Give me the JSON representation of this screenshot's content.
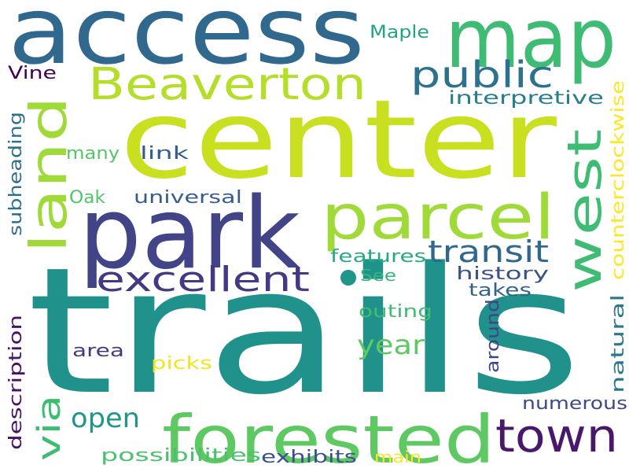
{
  "cloud": {
    "words": [
      {
        "text": "trails",
        "color": "#21918c"
      },
      {
        "text": "center",
        "color": "#c8e020"
      },
      {
        "text": "access",
        "color": "#31688e"
      },
      {
        "text": "map",
        "color": "#3fbc73"
      },
      {
        "text": "park",
        "color": "#414487"
      },
      {
        "text": "forested",
        "color": "#5ec962"
      },
      {
        "text": "parcel",
        "color": "#a0da39"
      },
      {
        "text": "land",
        "color": "#a0da39"
      },
      {
        "text": "west",
        "color": "#3fbc73"
      },
      {
        "text": "Beaverton",
        "color": "#b5de2b"
      },
      {
        "text": "town",
        "color": "#48186a"
      },
      {
        "text": "excellent",
        "color": "#443983"
      },
      {
        "text": "public",
        "color": "#2c728e"
      },
      {
        "text": "transit",
        "color": "#30678d"
      },
      {
        "text": "via",
        "color": "#3dbc74"
      },
      {
        "text": "year",
        "color": "#5ec962"
      },
      {
        "text": "open",
        "color": "#1f958b"
      },
      {
        "text": "counterclockwise",
        "color": "#fde725"
      },
      {
        "text": "interpretive",
        "color": "#287d8e"
      },
      {
        "text": "natural",
        "color": "#2a788e"
      },
      {
        "text": "description",
        "color": "#471365"
      },
      {
        "text": "subheading",
        "color": "#2d708e"
      },
      {
        "text": "history",
        "color": "#3b518b"
      },
      {
        "text": "numerous",
        "color": "#3e4a89"
      },
      {
        "text": "possibilities",
        "color": "#4ac16d"
      },
      {
        "text": "exhibits",
        "color": "#3b518b"
      },
      {
        "text": "features",
        "color": "#25ab82"
      },
      {
        "text": "around",
        "color": "#404588"
      },
      {
        "text": "outing",
        "color": "#40bd72"
      },
      {
        "text": "takes",
        "color": "#33638d"
      },
      {
        "text": "universal",
        "color": "#365c8d"
      },
      {
        "text": "many",
        "color": "#54c568"
      },
      {
        "text": "link",
        "color": "#355f8d"
      },
      {
        "text": "Oak",
        "color": "#52c569"
      },
      {
        "text": "area",
        "color": "#443983"
      },
      {
        "text": "picks",
        "color": "#f1e51d"
      },
      {
        "text": "Maple",
        "color": "#20a486"
      },
      {
        "text": "Vine",
        "color": "#440154"
      },
      {
        "text": "See",
        "color": "#35b779"
      },
      {
        "text": "main",
        "color": "#fde725"
      },
      {
        "text": "",
        "color": "#1f968b"
      }
    ]
  }
}
